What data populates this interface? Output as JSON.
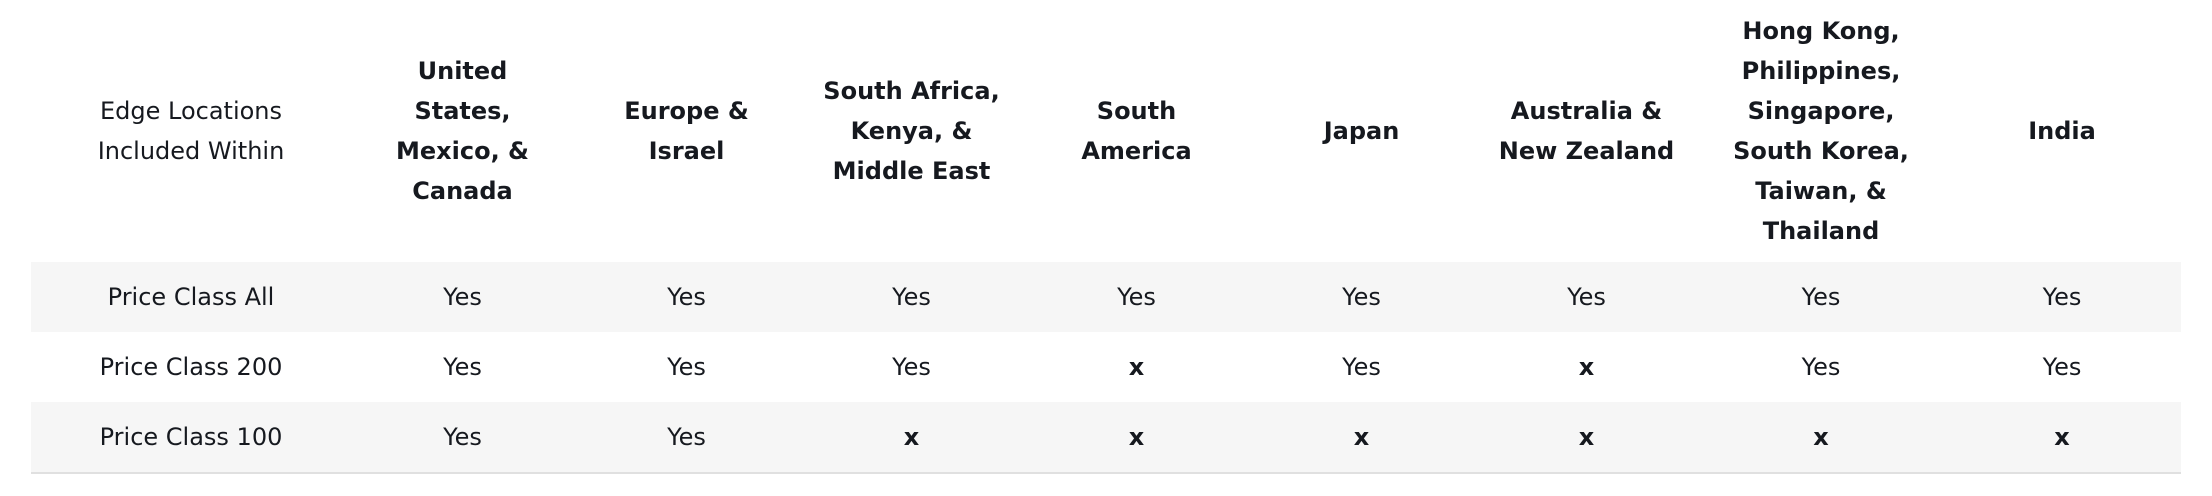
{
  "table": {
    "headers": [
      "Edge Locations Included Within",
      "United States, Mexico, & Canada",
      "Europe & Israel",
      "South Africa, Kenya, & Middle East",
      "South America",
      "Japan",
      "Australia & New Zealand",
      "Hong Kong, Philippines, Singapore, South Korea, Taiwan, & Thailand",
      "India"
    ],
    "rows": [
      {
        "label": "Price Class All",
        "cells": [
          "Yes",
          "Yes",
          "Yes",
          "Yes",
          "Yes",
          "Yes",
          "Yes",
          "Yes"
        ]
      },
      {
        "label": "Price Class 200",
        "cells": [
          "Yes",
          "Yes",
          "Yes",
          "x",
          "Yes",
          "x",
          "Yes",
          "Yes"
        ]
      },
      {
        "label": "Price Class 100",
        "cells": [
          "Yes",
          "Yes",
          "x",
          "x",
          "x",
          "x",
          "x",
          "x"
        ]
      }
    ]
  }
}
